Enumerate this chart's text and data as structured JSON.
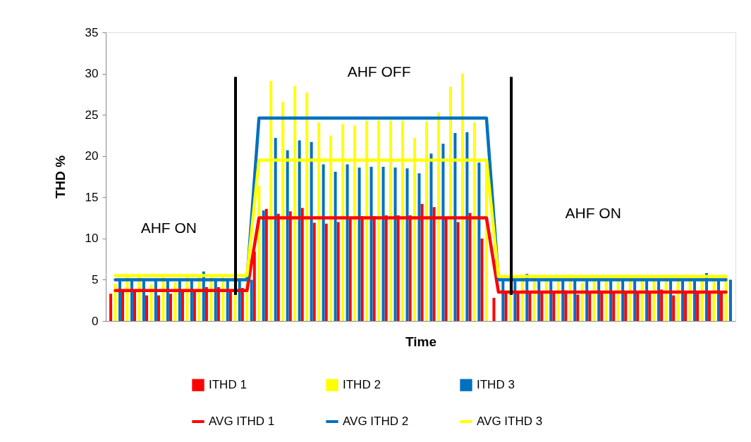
{
  "chart_data": {
    "type": "bar",
    "xlabel": "Time",
    "ylabel": "THD %",
    "categories": [
      null,
      null,
      null,
      null,
      null,
      null,
      null,
      null,
      null,
      null,
      null,
      null,
      null,
      null,
      null,
      null,
      null,
      null,
      null,
      null,
      null,
      null,
      null,
      null,
      null,
      null,
      null,
      null,
      null,
      null,
      null,
      null,
      null,
      null,
      null,
      null,
      null,
      null,
      null,
      null,
      null,
      null,
      null,
      null,
      null,
      null,
      null,
      null,
      null,
      null,
      null,
      null
    ],
    "series": [
      {
        "name": "ITHD 1",
        "color": "#ff0000",
        "values": [
          3.3,
          3.7,
          3.7,
          3.1,
          3.1,
          3.3,
          3.7,
          3.7,
          4.1,
          4.1,
          3.5,
          4.0,
          8.4,
          13.6,
          13.0,
          13.3,
          13.7,
          11.9,
          11.8,
          12.0,
          12.5,
          12.7,
          12.7,
          12.8,
          12.8,
          12.8,
          14.2,
          13.8,
          12.5,
          12.0,
          13.1,
          10.0,
          2.8,
          3.5,
          3.5,
          3.5,
          3.5,
          3.5,
          3.7,
          3.2,
          3.5,
          3.5,
          3.5,
          3.5,
          3.5,
          3.5,
          3.8,
          3.1,
          3.5,
          3.5,
          3.5,
          3.5
        ]
      },
      {
        "name": "ITHD 2",
        "color": "#ffff00",
        "values": [
          4.5,
          5.3,
          5.3,
          4.4,
          5.3,
          4.7,
          5.3,
          5.3,
          5.3,
          5.3,
          5.3,
          5.3,
          16.4,
          29.1,
          26.6,
          28.5,
          27.7,
          24.1,
          22.5,
          23.9,
          23.7,
          24.3,
          24.3,
          24.3,
          24.3,
          22.2,
          24.2,
          25.3,
          28.4,
          30.0,
          24.1,
          19.0,
          null,
          5.4,
          5.4,
          5.4,
          5.4,
          5.4,
          5.4,
          4.6,
          5.4,
          5.4,
          5.4,
          5.4,
          5.4,
          5.4,
          5.4,
          5.4,
          5.4,
          5.4,
          5.4,
          5.4
        ]
      },
      {
        "name": "ITHD 3",
        "color": "#0070c0",
        "values": [
          5.0,
          5.0,
          5.0,
          5.0,
          5.0,
          5.0,
          5.0,
          6.0,
          5.0,
          5.0,
          5.0,
          5.0,
          13.4,
          22.2,
          20.7,
          21.9,
          21.7,
          19.0,
          18.1,
          19.0,
          18.6,
          18.7,
          18.7,
          18.6,
          18.5,
          17.9,
          20.3,
          21.5,
          22.8,
          22.9,
          19.2,
          null,
          5.0,
          5.0,
          5.7,
          5.0,
          5.0,
          5.0,
          5.0,
          5.0,
          5.0,
          5.0,
          5.0,
          5.0,
          5.0,
          5.0,
          5.0,
          5.0,
          5.0,
          5.8,
          5.0,
          5.0
        ]
      },
      {
        "name": "AVG ITHD 1",
        "type": "line",
        "color": "#ff0000",
        "values": [
          3.7,
          3.7,
          3.7,
          3.7,
          3.7,
          3.7,
          3.7,
          3.7,
          3.7,
          3.7,
          3.7,
          3.7,
          12.5,
          12.5,
          12.5,
          12.5,
          12.5,
          12.5,
          12.5,
          12.5,
          12.5,
          12.5,
          12.5,
          12.5,
          12.5,
          12.5,
          12.5,
          12.5,
          12.5,
          12.5,
          12.5,
          12.5,
          3.5,
          3.5,
          3.5,
          3.5,
          3.5,
          3.5,
          3.5,
          3.5,
          3.5,
          3.5,
          3.5,
          3.5,
          3.5,
          3.5,
          3.5,
          3.5,
          3.5,
          3.5,
          3.5,
          3.5
        ]
      },
      {
        "name": "AVG ITHD 2",
        "type": "line",
        "color": "#0070c0",
        "values": [
          5.0,
          5.0,
          5.0,
          5.0,
          5.0,
          5.0,
          5.0,
          5.0,
          5.0,
          5.0,
          5.0,
          5.0,
          24.6,
          24.6,
          24.6,
          24.6,
          24.6,
          24.6,
          24.6,
          24.6,
          24.6,
          24.6,
          24.6,
          24.6,
          24.6,
          24.6,
          24.6,
          24.6,
          24.6,
          24.6,
          24.6,
          24.6,
          5.0,
          5.0,
          5.0,
          5.0,
          5.0,
          5.0,
          5.0,
          5.0,
          5.0,
          5.0,
          5.0,
          5.0,
          5.0,
          5.0,
          5.0,
          5.0,
          5.0,
          5.0,
          5.0,
          5.0
        ]
      },
      {
        "name": "AVG ITHD 3",
        "type": "line",
        "color": "#ffff00",
        "values": [
          5.5,
          5.5,
          5.5,
          5.5,
          5.5,
          5.5,
          5.5,
          5.5,
          5.5,
          5.5,
          5.5,
          5.5,
          19.5,
          19.5,
          19.5,
          19.5,
          19.5,
          19.5,
          19.5,
          19.5,
          19.5,
          19.5,
          19.5,
          19.5,
          19.5,
          19.5,
          19.5,
          19.5,
          19.5,
          19.5,
          19.5,
          19.5,
          5.4,
          5.4,
          5.4,
          5.4,
          5.4,
          5.4,
          5.4,
          5.4,
          5.4,
          5.4,
          5.4,
          5.4,
          5.4,
          5.4,
          5.4,
          5.4,
          5.4,
          5.4,
          5.4,
          5.4
        ]
      }
    ],
    "ylim": [
      0,
      35
    ],
    "yticks": [
      0,
      5,
      10,
      15,
      20,
      25,
      30,
      35
    ],
    "annotations": [
      "AHF ON",
      "AHF OFF",
      "AHF ON"
    ],
    "tick_labels": "y",
    "grid": false,
    "legend": "bottom"
  }
}
